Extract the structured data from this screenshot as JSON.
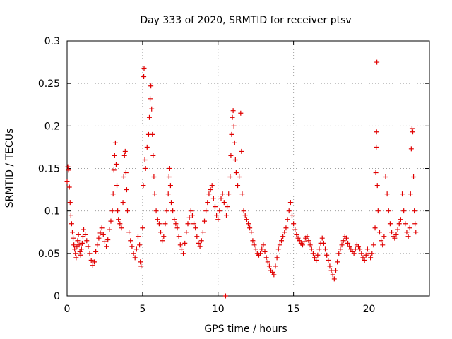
{
  "chart_data": {
    "type": "scatter",
    "title": "Day 333 of 2020, SRMTID for receiver ptsv",
    "xlabel": "GPS time / hours",
    "ylabel": "SRMTID / TECUs",
    "xlim": [
      0,
      24
    ],
    "ylim": [
      0,
      0.3
    ],
    "x_ticks": [
      "0",
      "5",
      "10",
      "15",
      "20"
    ],
    "y_ticks": [
      "0",
      "0.05",
      "0.1",
      "0.15",
      "0.2",
      "0.25",
      "0.3"
    ],
    "grid": true,
    "marker": "+",
    "color": "#e00000",
    "series": [
      {
        "name": "SRMTID",
        "points": [
          [
            0.0,
            0.135
          ],
          [
            0.05,
            0.152
          ],
          [
            0.1,
            0.148
          ],
          [
            0.15,
            0.128
          ],
          [
            0.2,
            0.11
          ],
          [
            0.25,
            0.095
          ],
          [
            0.3,
            0.085
          ],
          [
            0.35,
            0.075
          ],
          [
            0.4,
            0.068
          ],
          [
            0.45,
            0.06
          ],
          [
            0.5,
            0.055
          ],
          [
            0.55,
            0.05
          ],
          [
            0.6,
            0.045
          ],
          [
            0.65,
            0.058
          ],
          [
            0.7,
            0.065
          ],
          [
            0.75,
            0.072
          ],
          [
            0.8,
            0.06
          ],
          [
            0.85,
            0.052
          ],
          [
            0.9,
            0.048
          ],
          [
            0.95,
            0.055
          ],
          [
            1.0,
            0.062
          ],
          [
            1.05,
            0.07
          ],
          [
            1.1,
            0.078
          ],
          [
            1.2,
            0.072
          ],
          [
            1.3,
            0.065
          ],
          [
            1.4,
            0.058
          ],
          [
            1.5,
            0.05
          ],
          [
            1.6,
            0.042
          ],
          [
            1.7,
            0.036
          ],
          [
            1.8,
            0.04
          ],
          [
            1.9,
            0.052
          ],
          [
            2.0,
            0.06
          ],
          [
            2.1,
            0.068
          ],
          [
            2.2,
            0.074
          ],
          [
            2.3,
            0.08
          ],
          [
            2.4,
            0.072
          ],
          [
            2.5,
            0.064
          ],
          [
            2.6,
            0.058
          ],
          [
            2.7,
            0.066
          ],
          [
            2.8,
            0.078
          ],
          [
            2.9,
            0.088
          ],
          [
            3.0,
            0.1
          ],
          [
            3.05,
            0.12
          ],
          [
            3.1,
            0.148
          ],
          [
            3.15,
            0.165
          ],
          [
            3.2,
            0.18
          ],
          [
            3.25,
            0.155
          ],
          [
            3.3,
            0.13
          ],
          [
            3.35,
            0.1
          ],
          [
            3.4,
            0.09
          ],
          [
            3.5,
            0.085
          ],
          [
            3.6,
            0.08
          ],
          [
            3.7,
            0.11
          ],
          [
            3.75,
            0.14
          ],
          [
            3.8,
            0.165
          ],
          [
            3.85,
            0.17
          ],
          [
            3.9,
            0.145
          ],
          [
            3.95,
            0.125
          ],
          [
            4.0,
            0.1
          ],
          [
            4.1,
            0.075
          ],
          [
            4.2,
            0.065
          ],
          [
            4.3,
            0.058
          ],
          [
            4.4,
            0.05
          ],
          [
            4.5,
            0.045
          ],
          [
            4.6,
            0.055
          ],
          [
            4.7,
            0.07
          ],
          [
            4.8,
            0.06
          ],
          [
            4.85,
            0.04
          ],
          [
            4.9,
            0.035
          ],
          [
            5.0,
            0.08
          ],
          [
            5.05,
            0.13
          ],
          [
            5.08,
            0.258
          ],
          [
            5.1,
            0.268
          ],
          [
            5.15,
            0.16
          ],
          [
            5.2,
            0.15
          ],
          [
            5.3,
            0.175
          ],
          [
            5.4,
            0.19
          ],
          [
            5.45,
            0.21
          ],
          [
            5.5,
            0.232
          ],
          [
            5.55,
            0.247
          ],
          [
            5.6,
            0.22
          ],
          [
            5.65,
            0.19
          ],
          [
            5.7,
            0.165
          ],
          [
            5.75,
            0.14
          ],
          [
            5.8,
            0.12
          ],
          [
            5.9,
            0.1
          ],
          [
            6.0,
            0.09
          ],
          [
            6.1,
            0.085
          ],
          [
            6.2,
            0.075
          ],
          [
            6.3,
            0.065
          ],
          [
            6.4,
            0.07
          ],
          [
            6.5,
            0.085
          ],
          [
            6.6,
            0.1
          ],
          [
            6.7,
            0.12
          ],
          [
            6.75,
            0.14
          ],
          [
            6.8,
            0.15
          ],
          [
            6.85,
            0.13
          ],
          [
            6.9,
            0.11
          ],
          [
            7.0,
            0.1
          ],
          [
            7.1,
            0.09
          ],
          [
            7.2,
            0.085
          ],
          [
            7.3,
            0.08
          ],
          [
            7.4,
            0.07
          ],
          [
            7.5,
            0.06
          ],
          [
            7.6,
            0.055
          ],
          [
            7.7,
            0.05
          ],
          [
            7.8,
            0.062
          ],
          [
            7.9,
            0.075
          ],
          [
            8.0,
            0.085
          ],
          [
            8.1,
            0.092
          ],
          [
            8.2,
            0.1
          ],
          [
            8.3,
            0.095
          ],
          [
            8.4,
            0.085
          ],
          [
            8.5,
            0.08
          ],
          [
            8.6,
            0.07
          ],
          [
            8.7,
            0.062
          ],
          [
            8.8,
            0.058
          ],
          [
            8.9,
            0.065
          ],
          [
            9.0,
            0.075
          ],
          [
            9.1,
            0.088
          ],
          [
            9.2,
            0.1
          ],
          [
            9.3,
            0.11
          ],
          [
            9.4,
            0.12
          ],
          [
            9.5,
            0.125
          ],
          [
            9.6,
            0.13
          ],
          [
            9.7,
            0.115
          ],
          [
            9.8,
            0.105
          ],
          [
            9.9,
            0.095
          ],
          [
            10.0,
            0.09
          ],
          [
            10.1,
            0.1
          ],
          [
            10.2,
            0.115
          ],
          [
            10.3,
            0.12
          ],
          [
            10.4,
            0.11
          ],
          [
            10.5,
            0.0
          ],
          [
            10.55,
            0.095
          ],
          [
            10.6,
            0.105
          ],
          [
            10.7,
            0.12
          ],
          [
            10.8,
            0.14
          ],
          [
            10.85,
            0.165
          ],
          [
            10.9,
            0.19
          ],
          [
            10.95,
            0.21
          ],
          [
            11.0,
            0.218
          ],
          [
            11.05,
            0.2
          ],
          [
            11.1,
            0.18
          ],
          [
            11.15,
            0.16
          ],
          [
            11.2,
            0.145
          ],
          [
            11.3,
            0.13
          ],
          [
            11.4,
            0.14
          ],
          [
            11.5,
            0.215
          ],
          [
            11.55,
            0.17
          ],
          [
            11.6,
            0.12
          ],
          [
            11.7,
            0.1
          ],
          [
            11.8,
            0.095
          ],
          [
            11.9,
            0.09
          ],
          [
            12.0,
            0.085
          ],
          [
            12.1,
            0.08
          ],
          [
            12.2,
            0.075
          ],
          [
            12.3,
            0.065
          ],
          [
            12.4,
            0.06
          ],
          [
            12.5,
            0.055
          ],
          [
            12.6,
            0.05
          ],
          [
            12.7,
            0.048
          ],
          [
            12.8,
            0.05
          ],
          [
            12.9,
            0.055
          ],
          [
            13.0,
            0.06
          ],
          [
            13.1,
            0.052
          ],
          [
            13.2,
            0.045
          ],
          [
            13.3,
            0.04
          ],
          [
            13.4,
            0.035
          ],
          [
            13.5,
            0.03
          ],
          [
            13.6,
            0.028
          ],
          [
            13.7,
            0.025
          ],
          [
            13.8,
            0.035
          ],
          [
            13.9,
            0.045
          ],
          [
            14.0,
            0.055
          ],
          [
            14.1,
            0.06
          ],
          [
            14.2,
            0.065
          ],
          [
            14.3,
            0.07
          ],
          [
            14.4,
            0.075
          ],
          [
            14.5,
            0.08
          ],
          [
            14.6,
            0.09
          ],
          [
            14.7,
            0.1
          ],
          [
            14.8,
            0.11
          ],
          [
            14.9,
            0.095
          ],
          [
            15.0,
            0.085
          ],
          [
            15.1,
            0.078
          ],
          [
            15.2,
            0.072
          ],
          [
            15.3,
            0.068
          ],
          [
            15.4,
            0.065
          ],
          [
            15.5,
            0.062
          ],
          [
            15.6,
            0.06
          ],
          [
            15.7,
            0.064
          ],
          [
            15.8,
            0.068
          ],
          [
            15.9,
            0.07
          ],
          [
            16.0,
            0.065
          ],
          [
            16.1,
            0.06
          ],
          [
            16.2,
            0.055
          ],
          [
            16.3,
            0.05
          ],
          [
            16.4,
            0.045
          ],
          [
            16.5,
            0.042
          ],
          [
            16.6,
            0.048
          ],
          [
            16.7,
            0.055
          ],
          [
            16.8,
            0.062
          ],
          [
            16.9,
            0.068
          ],
          [
            17.0,
            0.062
          ],
          [
            17.1,
            0.055
          ],
          [
            17.2,
            0.048
          ],
          [
            17.3,
            0.042
          ],
          [
            17.4,
            0.035
          ],
          [
            17.5,
            0.03
          ],
          [
            17.6,
            0.025
          ],
          [
            17.7,
            0.02
          ],
          [
            17.8,
            0.03
          ],
          [
            17.9,
            0.04
          ],
          [
            18.0,
            0.05
          ],
          [
            18.1,
            0.055
          ],
          [
            18.2,
            0.06
          ],
          [
            18.3,
            0.065
          ],
          [
            18.4,
            0.07
          ],
          [
            18.5,
            0.068
          ],
          [
            18.6,
            0.062
          ],
          [
            18.7,
            0.058
          ],
          [
            18.8,
            0.055
          ],
          [
            18.9,
            0.052
          ],
          [
            19.0,
            0.05
          ],
          [
            19.1,
            0.055
          ],
          [
            19.2,
            0.06
          ],
          [
            19.3,
            0.058
          ],
          [
            19.4,
            0.055
          ],
          [
            19.5,
            0.05
          ],
          [
            19.6,
            0.045
          ],
          [
            19.7,
            0.042
          ],
          [
            19.8,
            0.048
          ],
          [
            19.9,
            0.055
          ],
          [
            20.0,
            0.05
          ],
          [
            20.1,
            0.045
          ],
          [
            20.2,
            0.05
          ],
          [
            20.3,
            0.06
          ],
          [
            20.4,
            0.08
          ],
          [
            20.45,
            0.145
          ],
          [
            20.48,
            0.175
          ],
          [
            20.5,
            0.193
          ],
          [
            20.52,
            0.275
          ],
          [
            20.55,
            0.13
          ],
          [
            20.6,
            0.1
          ],
          [
            20.7,
            0.075
          ],
          [
            20.8,
            0.065
          ],
          [
            20.9,
            0.06
          ],
          [
            21.0,
            0.07
          ],
          [
            21.1,
            0.14
          ],
          [
            21.2,
            0.12
          ],
          [
            21.3,
            0.1
          ],
          [
            21.4,
            0.085
          ],
          [
            21.5,
            0.075
          ],
          [
            21.6,
            0.07
          ],
          [
            21.7,
            0.068
          ],
          [
            21.8,
            0.072
          ],
          [
            21.9,
            0.078
          ],
          [
            22.0,
            0.085
          ],
          [
            22.1,
            0.09
          ],
          [
            22.2,
            0.12
          ],
          [
            22.3,
            0.1
          ],
          [
            22.4,
            0.085
          ],
          [
            22.5,
            0.075
          ],
          [
            22.6,
            0.07
          ],
          [
            22.7,
            0.08
          ],
          [
            22.75,
            0.12
          ],
          [
            22.8,
            0.173
          ],
          [
            22.85,
            0.197
          ],
          [
            22.9,
            0.193
          ],
          [
            22.95,
            0.14
          ],
          [
            23.0,
            0.1
          ],
          [
            23.05,
            0.085
          ],
          [
            23.1,
            0.075
          ]
        ]
      }
    ]
  }
}
